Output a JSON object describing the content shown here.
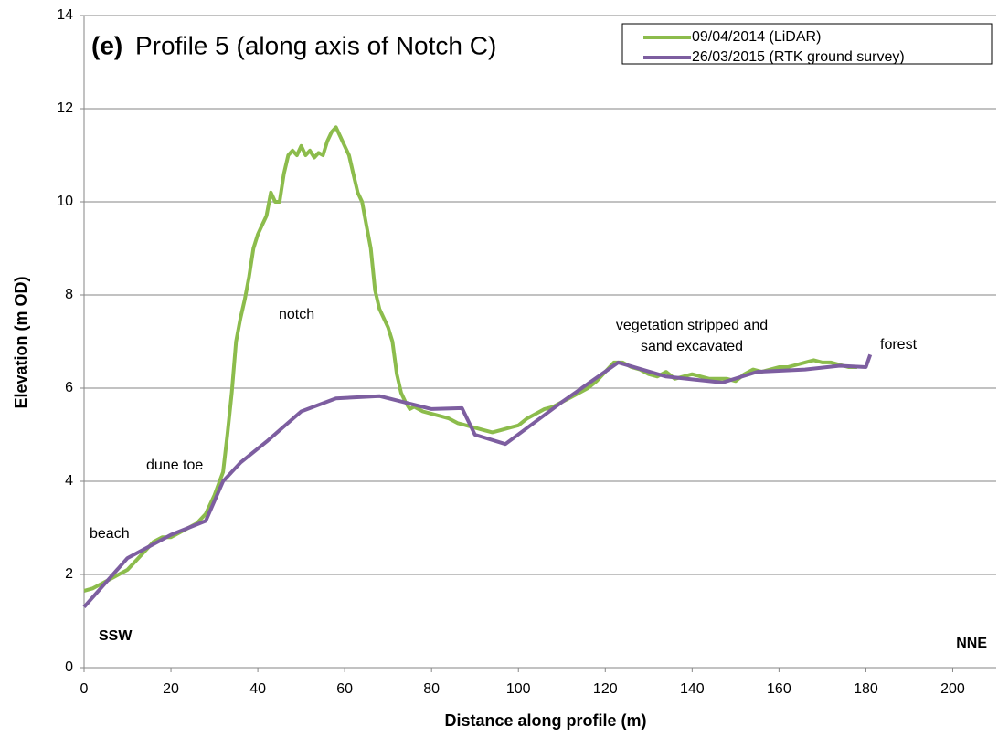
{
  "chart_data": {
    "type": "line",
    "panel_label": "(e)",
    "title": "Profile 5 (along axis of Notch C)",
    "x_label": "Distance along profile (m)",
    "y_label": "Elevation (m OD)",
    "xlim": [
      0,
      210
    ],
    "ylim": [
      0,
      14
    ],
    "xticks": [
      0,
      20,
      40,
      60,
      80,
      100,
      120,
      140,
      160,
      180,
      200
    ],
    "yticks": [
      0,
      2,
      4,
      6,
      8,
      10,
      12,
      14
    ],
    "grid": true,
    "legend": "upper right",
    "annotations": [
      "beach",
      "dune toe",
      "notch",
      "vegetation stripped and",
      "sand excavated",
      "forest",
      "SSW",
      "NNE"
    ],
    "series": [
      {
        "name": "09/04/2014 (LiDAR)",
        "color": "#8cbc4c",
        "x": [
          0,
          2,
          4,
          6,
          8,
          10,
          12,
          14,
          16,
          18,
          20,
          22,
          24,
          26,
          28,
          30,
          32,
          33,
          34,
          35,
          36,
          37,
          38,
          39,
          40,
          41,
          42,
          43,
          44,
          45,
          46,
          47,
          48,
          49,
          50,
          51,
          52,
          53,
          54,
          55,
          56,
          57,
          58,
          59,
          60,
          61,
          62,
          63,
          64,
          65,
          66,
          67,
          68,
          70,
          71,
          72,
          73,
          74,
          75,
          76,
          78,
          80,
          82,
          84,
          86,
          88,
          90,
          92,
          94,
          96,
          98,
          100,
          102,
          104,
          106,
          108,
          110,
          112,
          114,
          116,
          118,
          120,
          122,
          124,
          126,
          128,
          130,
          132,
          134,
          136,
          138,
          140,
          142,
          144,
          146,
          148,
          150,
          152,
          154,
          156,
          158,
          160,
          162,
          164,
          166,
          168,
          170,
          172,
          174,
          176,
          178
        ],
        "values": [
          1.65,
          1.7,
          1.8,
          1.9,
          2.0,
          2.1,
          2.3,
          2.5,
          2.7,
          2.8,
          2.8,
          2.9,
          3.0,
          3.1,
          3.3,
          3.7,
          4.2,
          5.0,
          5.9,
          7.0,
          7.5,
          7.9,
          8.4,
          9.0,
          9.3,
          9.5,
          9.7,
          10.2,
          10.0,
          10.0,
          10.6,
          11.0,
          11.1,
          11.0,
          11.2,
          11.0,
          11.1,
          10.95,
          11.05,
          11.0,
          11.3,
          11.5,
          11.6,
          11.4,
          11.2,
          11.0,
          10.6,
          10.2,
          10.0,
          9.5,
          9.0,
          8.1,
          7.7,
          7.3,
          7.0,
          6.3,
          5.9,
          5.7,
          5.55,
          5.6,
          5.5,
          5.45,
          5.4,
          5.35,
          5.25,
          5.2,
          5.15,
          5.1,
          5.05,
          5.1,
          5.15,
          5.2,
          5.35,
          5.45,
          5.55,
          5.6,
          5.7,
          5.8,
          5.9,
          6.0,
          6.15,
          6.35,
          6.55,
          6.55,
          6.45,
          6.4,
          6.3,
          6.25,
          6.35,
          6.2,
          6.25,
          6.3,
          6.25,
          6.2,
          6.2,
          6.2,
          6.15,
          6.3,
          6.4,
          6.35,
          6.4,
          6.45,
          6.45,
          6.5,
          6.55,
          6.6,
          6.55,
          6.55,
          6.5,
          6.45,
          6.45
        ]
      },
      {
        "name": "26/03/2015 (RTK ground survey)",
        "color": "#7d5ea0",
        "x": [
          0,
          10,
          20,
          28,
          32,
          36,
          42,
          50,
          58,
          68,
          80,
          87,
          90,
          97,
          110,
          123,
          134,
          147,
          155,
          166,
          174,
          180,
          181
        ],
        "values": [
          1.3,
          2.35,
          2.85,
          3.15,
          4.0,
          4.4,
          4.85,
          5.5,
          5.78,
          5.83,
          5.55,
          5.57,
          5.0,
          4.8,
          5.7,
          6.55,
          6.25,
          6.12,
          6.35,
          6.4,
          6.48,
          6.45,
          6.72
        ]
      }
    ]
  }
}
